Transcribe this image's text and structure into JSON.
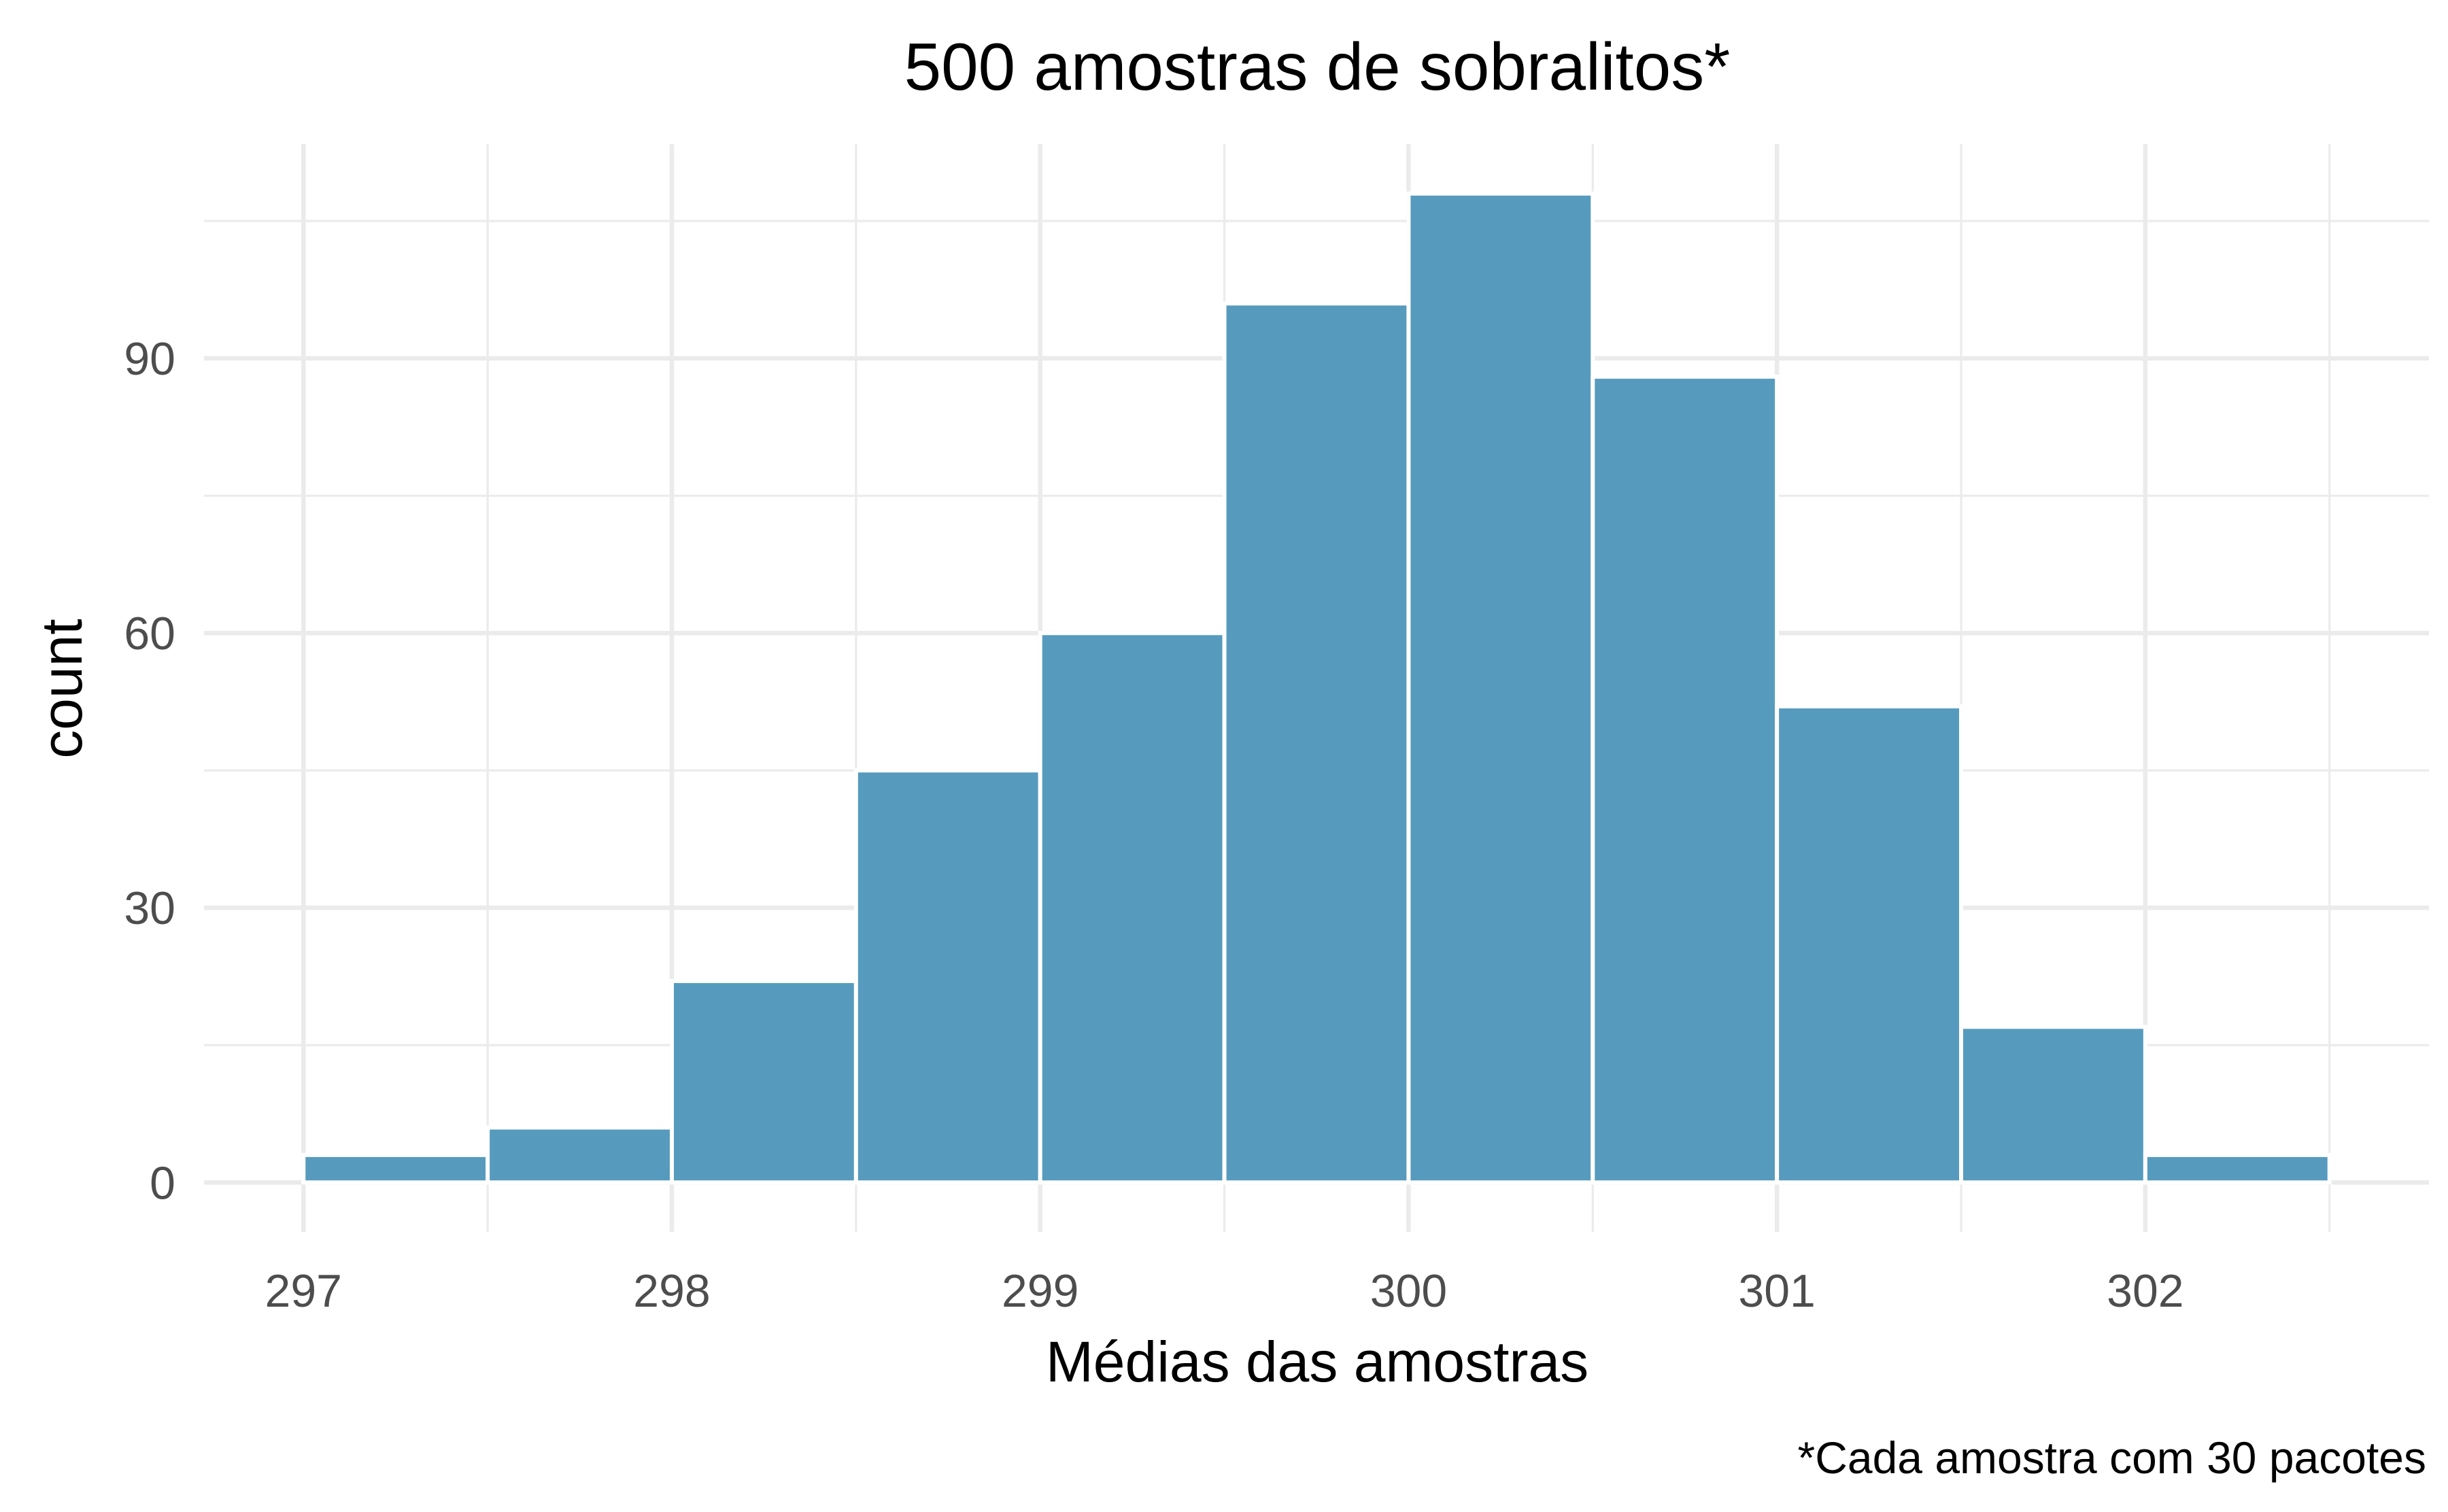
{
  "chart_data": {
    "type": "bar",
    "title": "500 amostras de sobralitos*",
    "xlabel": "Médias das amostras",
    "ylabel": "count",
    "caption": "*Cada amostra com 30 pacotes",
    "bar_color": "#569BBD",
    "grid_color": "#EBEBEB",
    "grid": true,
    "bin_width": 0.5,
    "bins": [
      {
        "x_start": 297.0,
        "x_end": 297.5,
        "count": 3
      },
      {
        "x_start": 297.5,
        "x_end": 298.0,
        "count": 6
      },
      {
        "x_start": 298.0,
        "x_end": 298.5,
        "count": 22
      },
      {
        "x_start": 298.5,
        "x_end": 299.0,
        "count": 45
      },
      {
        "x_start": 299.0,
        "x_end": 299.5,
        "count": 60
      },
      {
        "x_start": 299.5,
        "x_end": 300.0,
        "count": 96
      },
      {
        "x_start": 300.0,
        "x_end": 300.5,
        "count": 108
      },
      {
        "x_start": 300.5,
        "x_end": 301.0,
        "count": 88
      },
      {
        "x_start": 301.0,
        "x_end": 301.5,
        "count": 52
      },
      {
        "x_start": 301.5,
        "x_end": 302.0,
        "count": 17
      },
      {
        "x_start": 302.0,
        "x_end": 302.5,
        "count": 3
      }
    ],
    "xlim": [
      296.73,
      302.77
    ],
    "ylim": [
      -5.4,
      113.4
    ],
    "x_ticks": [
      297,
      298,
      299,
      300,
      301,
      302
    ],
    "x_tick_labels": [
      "297",
      "298",
      "299",
      "300",
      "301",
      "302"
    ],
    "x_minor_ticks": [
      297.5,
      298.5,
      299.5,
      300.5,
      301.5,
      302.5
    ],
    "y_ticks": [
      0,
      30,
      60,
      90
    ],
    "y_tick_labels": [
      "0",
      "30",
      "60",
      "90"
    ],
    "y_minor_ticks": [
      15,
      45,
      75,
      105
    ]
  }
}
